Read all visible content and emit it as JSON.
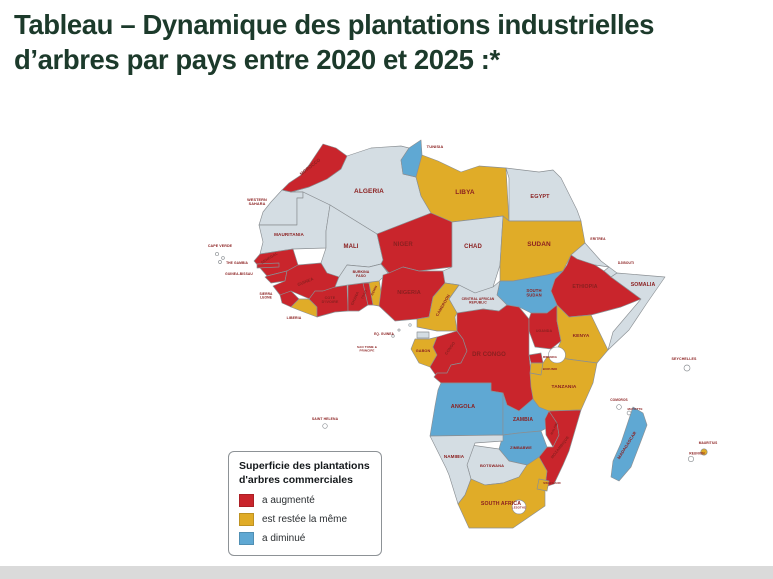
{
  "title": {
    "line1": "Tableau – Dynamique des plantations industrielles",
    "line2": "d’arbres par pays entre 2020 et 2025 :*"
  },
  "map": {
    "legend": {
      "title": "Superficie des plantations d'arbres commerciales",
      "items": [
        {
          "key": "increased",
          "label": "a augmenté"
        },
        {
          "key": "same",
          "label": "est restée la même"
        },
        {
          "key": "decreased",
          "label": "a diminué"
        }
      ]
    },
    "colors": {
      "increased": "#c9252c",
      "same": "#e0ac28",
      "decreased": "#5fa8d3",
      "no_data": "#d4dde3",
      "island": "#ffffff",
      "border": "#8a8f93",
      "label": "#8b2020",
      "water": "#ffffff"
    },
    "countries": [
      {
        "id": "algeria",
        "label": "ALGERIA",
        "status": "no_data"
      },
      {
        "id": "western-sahara",
        "label": "WESTERN|SAHARA",
        "status": "no_data"
      },
      {
        "id": "morocco",
        "label": "MOROCCO",
        "status": "increased"
      },
      {
        "id": "tunisia",
        "label": "TUNISIA",
        "status": "decreased"
      },
      {
        "id": "libya",
        "label": "LIBYA",
        "status": "same"
      },
      {
        "id": "egypt",
        "label": "EGYPT",
        "status": "no_data"
      },
      {
        "id": "mauritania",
        "label": "MAURITANIA",
        "status": "no_data"
      },
      {
        "id": "mali",
        "label": "MALI",
        "status": "no_data"
      },
      {
        "id": "senegal",
        "label": "SENEGAL",
        "status": "increased"
      },
      {
        "id": "gambia",
        "label": "THE GAMBIA",
        "status": "increased"
      },
      {
        "id": "guinea-bissau",
        "label": "GUINEA-BISSAU",
        "status": "increased"
      },
      {
        "id": "guinea",
        "label": "GUINEA",
        "status": "increased"
      },
      {
        "id": "sierra-leone",
        "label": "SIERRA|LEONE",
        "status": "increased"
      },
      {
        "id": "liberia",
        "label": "LIBERIA",
        "status": "same"
      },
      {
        "id": "cote-divoire",
        "label": "COTE|D'IVOIRE",
        "status": "increased"
      },
      {
        "id": "ghana",
        "label": "GHANA",
        "status": "increased"
      },
      {
        "id": "togo",
        "label": "TOGO",
        "status": "increased"
      },
      {
        "id": "benin",
        "label": "BENIN",
        "status": "same"
      },
      {
        "id": "burkina-faso",
        "label": "BURKINA|FASO",
        "status": "no_data"
      },
      {
        "id": "niger",
        "label": "NIGER",
        "status": "increased"
      },
      {
        "id": "nigeria",
        "label": "NIGERIA",
        "status": "increased"
      },
      {
        "id": "chad",
        "label": "CHAD",
        "status": "no_data"
      },
      {
        "id": "sudan",
        "label": "SUDAN",
        "status": "same"
      },
      {
        "id": "eritrea",
        "label": "ERITREA",
        "status": "no_data"
      },
      {
        "id": "djibouti",
        "label": "DJIBOUTI",
        "status": "no_data"
      },
      {
        "id": "ethiopia",
        "label": "ETHIOPIA",
        "status": "increased"
      },
      {
        "id": "somalia",
        "label": "SOMALIA",
        "status": "no_data"
      },
      {
        "id": "south-sudan",
        "label": "SOUTH|SUDAN",
        "status": "decreased"
      },
      {
        "id": "car",
        "label": "CENTRAL AFRICAN|REPUBLIC",
        "status": "no_data"
      },
      {
        "id": "cameroon",
        "label": "CAMEROON",
        "status": "same"
      },
      {
        "id": "eq-guinea",
        "label": "EQ. GUINEA",
        "status": "no_data"
      },
      {
        "id": "sao-tome",
        "label": "SAO TOME &|PRINCIPE",
        "status": "island"
      },
      {
        "id": "gabon",
        "label": "GABON",
        "status": "same"
      },
      {
        "id": "congo",
        "label": "CONGO",
        "status": "increased"
      },
      {
        "id": "drc",
        "label": "DR CONGO",
        "status": "increased"
      },
      {
        "id": "uganda",
        "label": "UGANDA",
        "status": "increased"
      },
      {
        "id": "kenya",
        "label": "KENYA",
        "status": "same"
      },
      {
        "id": "rwanda",
        "label": "RWANDA",
        "status": "increased"
      },
      {
        "id": "burundi",
        "label": "BURUNDI",
        "status": "same"
      },
      {
        "id": "tanzania",
        "label": "TANZANIA",
        "status": "same"
      },
      {
        "id": "angola",
        "label": "ANGOLA",
        "status": "decreased"
      },
      {
        "id": "zambia",
        "label": "ZAMBIA",
        "status": "decreased"
      },
      {
        "id": "malawi",
        "label": "MALAWI",
        "status": "increased"
      },
      {
        "id": "mozambique",
        "label": "MOZAMBIQUE",
        "status": "increased"
      },
      {
        "id": "zimbabwe",
        "label": "ZIMBABWE",
        "status": "decreased"
      },
      {
        "id": "botswana",
        "label": "BOTSWANA",
        "status": "no_data"
      },
      {
        "id": "namibia",
        "label": "NAMIBIA",
        "status": "no_data"
      },
      {
        "id": "south-africa",
        "label": "SOUTH AFRICA",
        "status": "same"
      },
      {
        "id": "swaziland",
        "label": "SWAZILAND",
        "status": "same"
      },
      {
        "id": "lesotho",
        "label": "LESOTHO",
        "status": "island"
      },
      {
        "id": "madagascar",
        "label": "MADAGASCAR",
        "status": "decreased"
      },
      {
        "id": "cape-verde",
        "label": "CAPE VERDE",
        "status": "island"
      },
      {
        "id": "seychelles",
        "label": "SEYCHELLES",
        "status": "island"
      },
      {
        "id": "comoros",
        "label": "COMOROS",
        "status": "island"
      },
      {
        "id": "mayotte",
        "label": "MAYOTTE",
        "status": "island"
      },
      {
        "id": "mauritius",
        "label": "MAURITIUS",
        "status": "same"
      },
      {
        "id": "reunion",
        "label": "REUNION",
        "status": "island"
      },
      {
        "id": "saint-helena",
        "label": "SAINT HELENA",
        "status": "island"
      }
    ]
  }
}
